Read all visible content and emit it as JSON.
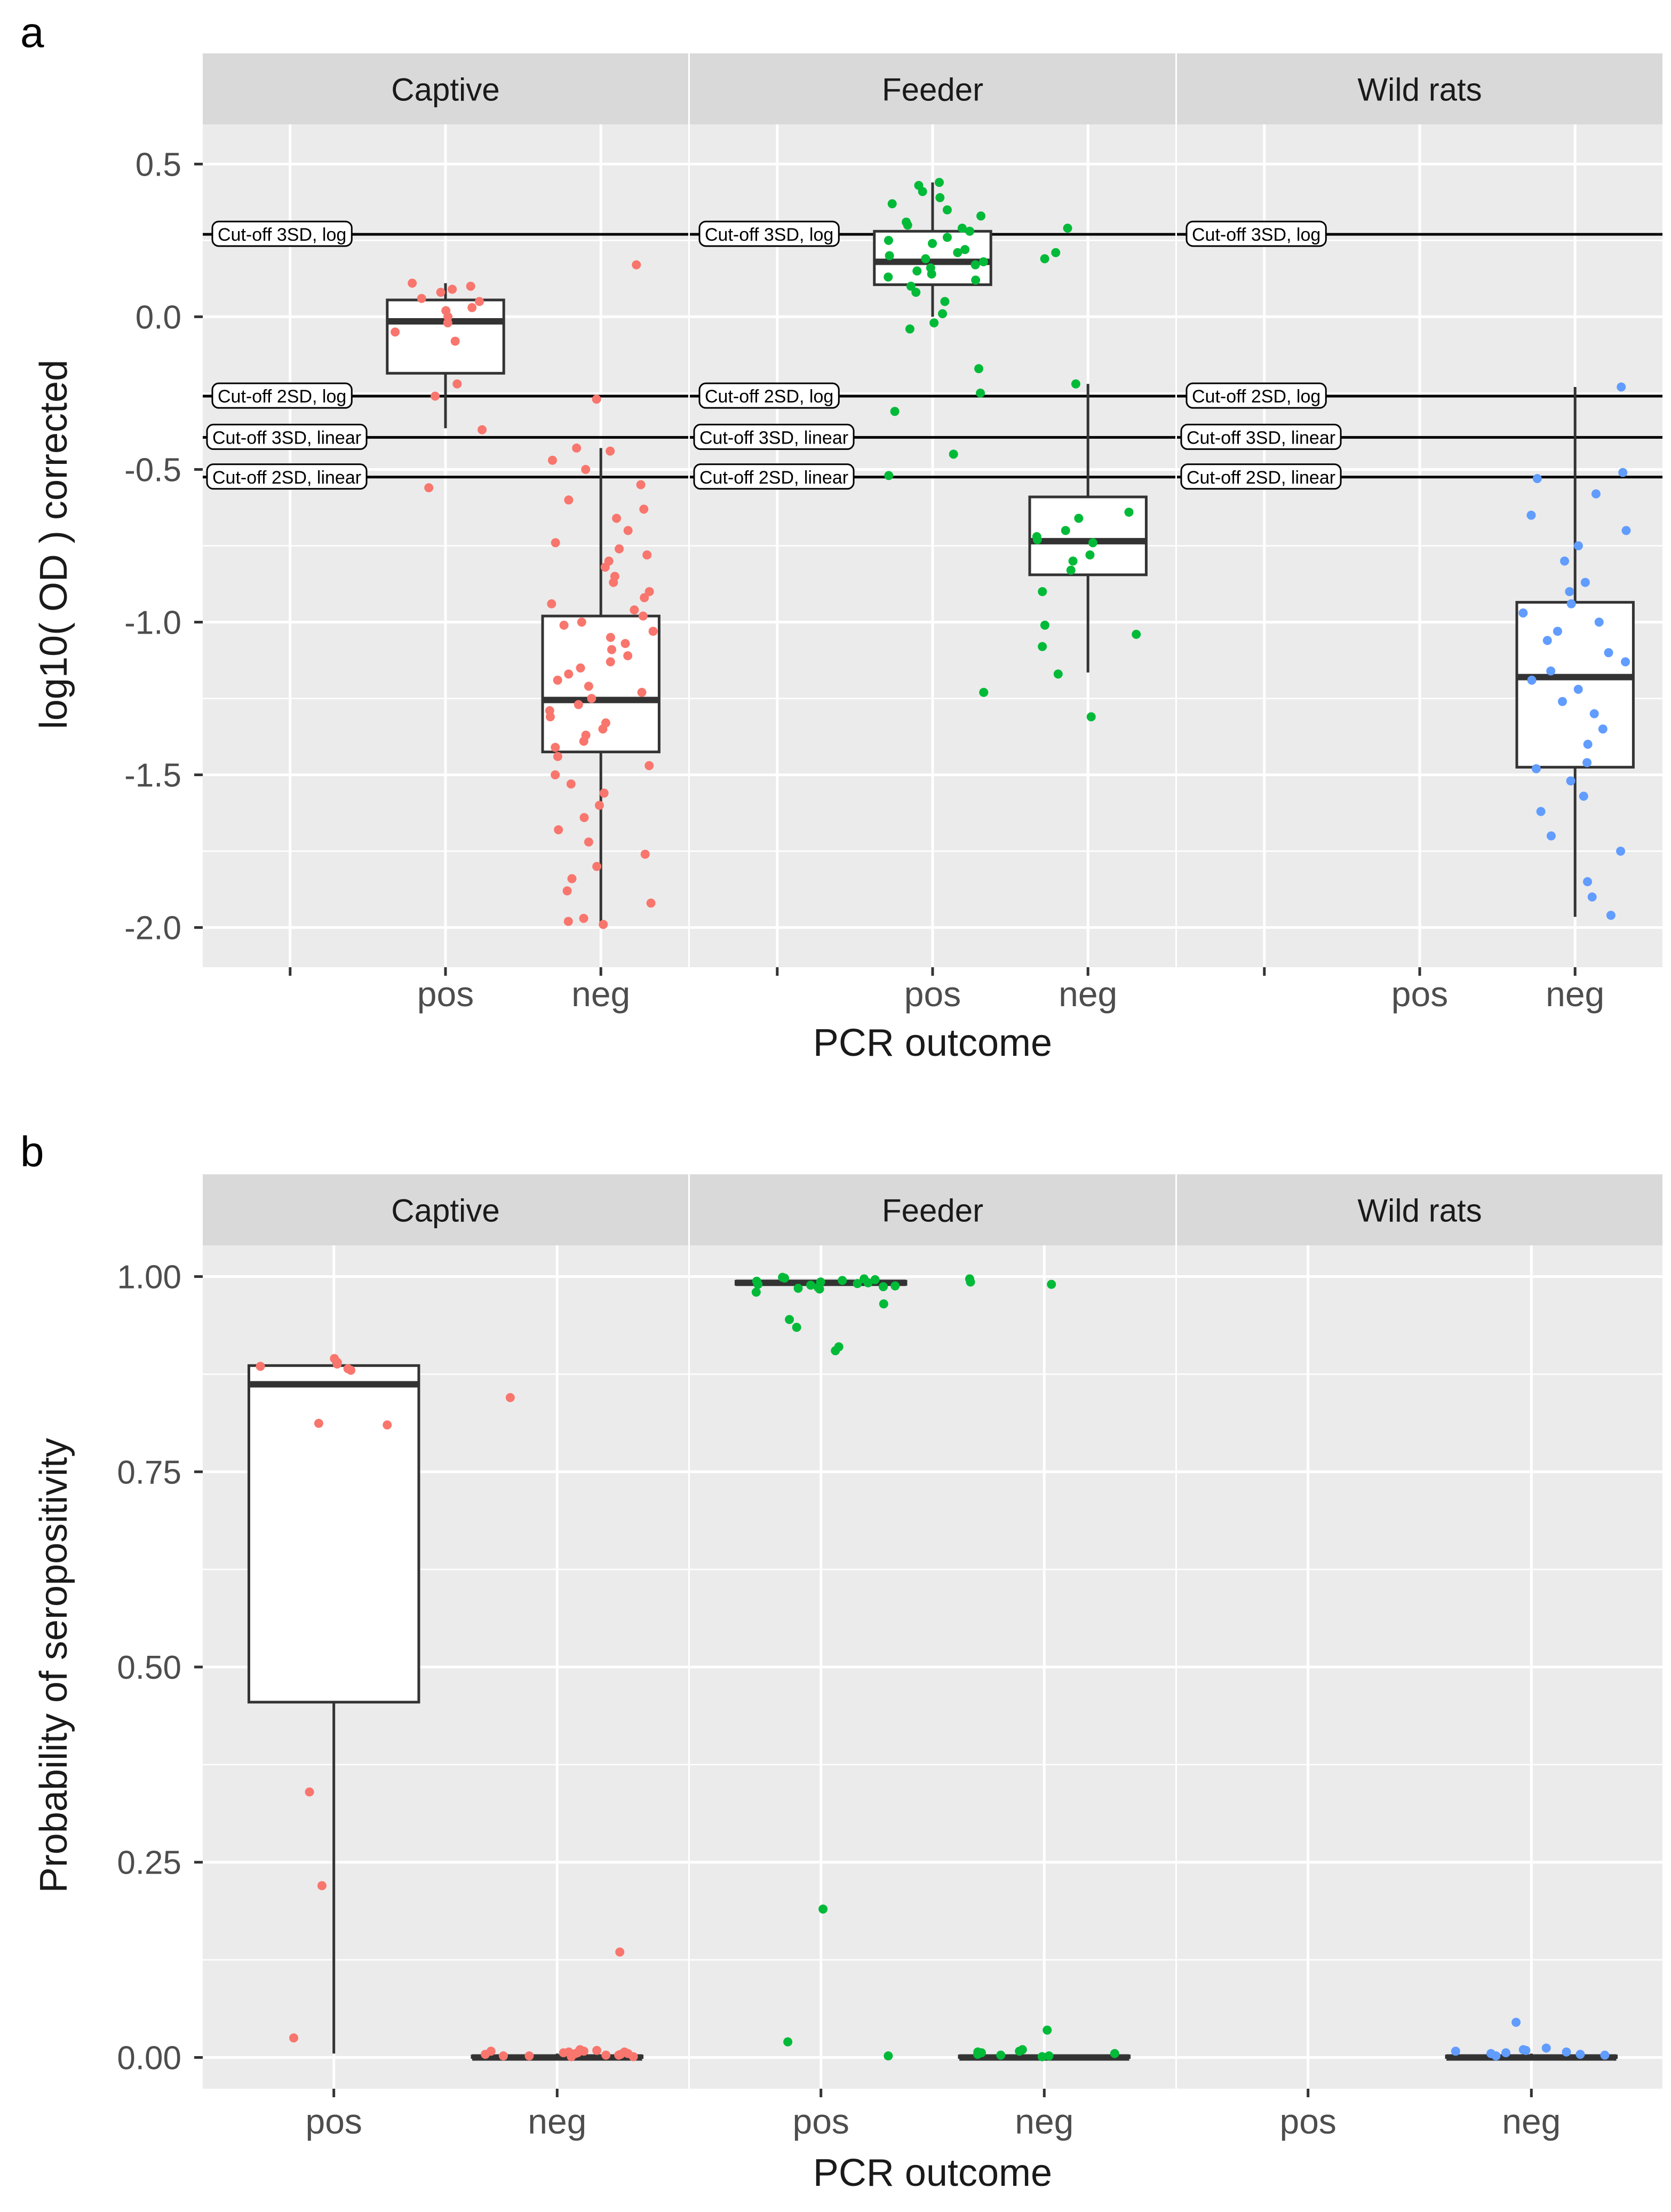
{
  "colors": {
    "panel_bg": "#ebebeb",
    "strip_bg": "#d9d9d9",
    "grid": "#ffffff",
    "axis_text": "#4d4d4d",
    "text": "#1a1a1a",
    "series": {
      "Captive": "#f8766d",
      "Feeder": "#00ba38",
      "Wild rats": "#619cff"
    }
  },
  "chart_data": [
    {
      "panel_label": "a",
      "type": "boxplot",
      "facets": [
        "Captive",
        "Feeder",
        "Wild rats"
      ],
      "categories": [
        "",
        "pos",
        "neg"
      ],
      "xlabel": "PCR outcome",
      "ylabel": "log10( OD ) corrected",
      "ylim": [
        -2.13,
        0.63
      ],
      "yticks": [
        0.5,
        0.0,
        -0.5,
        -1.0,
        -1.5,
        -2.0
      ],
      "ytick_labels": [
        "0.5",
        "0.0",
        "-0.5",
        "-1.0",
        "-1.5",
        "-2.0"
      ],
      "cutoffs": [
        {
          "label": "Cut-off 3SD, log",
          "value": 0.27
        },
        {
          "label": "Cut-off 2SD, log",
          "value": -0.26
        },
        {
          "label": "Cut-off 3SD, linear",
          "value": -0.395
        },
        {
          "label": "Cut-off 2SD, linear",
          "value": -0.525
        }
      ],
      "series": [
        {
          "facet": "Captive",
          "category": "pos",
          "box": {
            "q1": -0.185,
            "median": -0.015,
            "q3": 0.055,
            "whisker_low": -0.365,
            "whisker_high": 0.11
          },
          "points": [
            0.11,
            0.1,
            0.09,
            0.08,
            0.06,
            0.05,
            0.03,
            0.02,
            0.0,
            -0.02,
            -0.05,
            -0.08,
            -0.22,
            -0.26,
            -0.37,
            -0.56
          ]
        },
        {
          "facet": "Captive",
          "category": "neg",
          "box": {
            "q1": -1.425,
            "median": -1.255,
            "q3": -0.98,
            "whisker_low": -1.985,
            "whisker_high": -0.43
          },
          "points": [
            0.17,
            -0.27,
            -0.43,
            -0.44,
            -0.47,
            -0.5,
            -0.55,
            -0.6,
            -0.63,
            -0.66,
            -0.7,
            -0.74,
            -0.76,
            -0.78,
            -0.8,
            -0.82,
            -0.85,
            -0.87,
            -0.9,
            -0.92,
            -0.94,
            -0.96,
            -0.98,
            -1.0,
            -1.01,
            -1.03,
            -1.05,
            -1.07,
            -1.09,
            -1.11,
            -1.13,
            -1.15,
            -1.17,
            -1.19,
            -1.21,
            -1.23,
            -1.25,
            -1.27,
            -1.29,
            -1.31,
            -1.33,
            -1.35,
            -1.37,
            -1.39,
            -1.41,
            -1.44,
            -1.47,
            -1.5,
            -1.53,
            -1.56,
            -1.6,
            -1.64,
            -1.68,
            -1.72,
            -1.76,
            -1.8,
            -1.84,
            -1.88,
            -1.92,
            -1.97,
            -1.98,
            -1.99
          ]
        },
        {
          "facet": "Feeder",
          "category": "pos",
          "box": {
            "q1": 0.105,
            "median": 0.18,
            "q3": 0.28,
            "whisker_low": 0.0,
            "whisker_high": 0.44
          },
          "points": [
            0.44,
            0.43,
            0.41,
            0.39,
            0.37,
            0.35,
            0.33,
            0.31,
            0.3,
            0.29,
            0.28,
            0.26,
            0.25,
            0.24,
            0.22,
            0.21,
            0.2,
            0.19,
            0.18,
            0.17,
            0.16,
            0.15,
            0.14,
            0.13,
            0.12,
            0.1,
            0.08,
            0.05,
            0.01,
            -0.02,
            -0.04,
            -0.17,
            -0.25,
            -0.31,
            -0.45,
            -0.52,
            -1.23
          ]
        },
        {
          "facet": "Feeder",
          "category": "neg",
          "box": {
            "q1": -0.845,
            "median": -0.735,
            "q3": -0.59,
            "whisker_low": -1.165,
            "whisker_high": -0.22
          },
          "points": [
            0.29,
            0.21,
            0.19,
            -0.22,
            -0.64,
            -0.66,
            -0.7,
            -0.72,
            -0.73,
            -0.74,
            -0.78,
            -0.8,
            -0.83,
            -0.9,
            -1.01,
            -1.04,
            -1.08,
            -1.17,
            -1.31
          ]
        },
        {
          "facet": "Wild rats",
          "category": "neg",
          "box": {
            "q1": -1.475,
            "median": -1.18,
            "q3": -0.935,
            "whisker_low": -1.965,
            "whisker_high": -0.23
          },
          "points": [
            -0.23,
            -0.51,
            -0.53,
            -0.58,
            -0.65,
            -0.7,
            -0.75,
            -0.8,
            -0.87,
            -0.9,
            -0.94,
            -0.97,
            -1.0,
            -1.03,
            -1.06,
            -1.1,
            -1.13,
            -1.16,
            -1.19,
            -1.22,
            -1.26,
            -1.3,
            -1.35,
            -1.4,
            -1.46,
            -1.48,
            -1.52,
            -1.57,
            -1.62,
            -1.7,
            -1.75,
            -1.85,
            -1.9,
            -1.96
          ]
        }
      ]
    },
    {
      "panel_label": "b",
      "type": "boxplot",
      "facets": [
        "Captive",
        "Feeder",
        "Wild rats"
      ],
      "categories": [
        "pos",
        "neg"
      ],
      "xlabel": "PCR outcome",
      "ylabel": "Probability of seropositivity",
      "ylim": [
        -0.04,
        1.04
      ],
      "yticks": [
        1.0,
        0.75,
        0.5,
        0.25,
        0.0
      ],
      "ytick_labels": [
        "1.00",
        "0.75",
        "0.50",
        "0.25",
        "0.00"
      ],
      "series": [
        {
          "facet": "Captive",
          "category": "pos",
          "box": {
            "q1": 0.455,
            "median": 0.862,
            "q3": 0.886,
            "whisker_low": 0.005,
            "whisker_high": 0.895
          },
          "points": [
            0.895,
            0.89,
            0.888,
            0.885,
            0.882,
            0.88,
            0.812,
            0.81,
            0.34,
            0.22,
            0.025
          ]
        },
        {
          "facet": "Captive",
          "category": "neg",
          "box": {
            "q1": 0.0,
            "median": 0.0,
            "q3": 0.002,
            "whisker_low": 0.0,
            "whisker_high": 0.005
          },
          "points": [
            0.845,
            0.135,
            0.01,
            0.009,
            0.008,
            0.008,
            0.007,
            0.007,
            0.006,
            0.006,
            0.005,
            0.005,
            0.004,
            0.004,
            0.003,
            0.003,
            0.002,
            0.002,
            0.001,
            0.001
          ]
        },
        {
          "facet": "Feeder",
          "category": "pos",
          "box": {
            "q1": 0.99,
            "median": 0.992,
            "q3": 0.994,
            "whisker_low": 0.985,
            "whisker_high": 0.998
          },
          "points": [
            0.999,
            0.998,
            0.997,
            0.996,
            0.995,
            0.994,
            0.993,
            0.992,
            0.991,
            0.99,
            0.989,
            0.988,
            0.987,
            0.986,
            0.985,
            0.984,
            0.98,
            0.965,
            0.945,
            0.935,
            0.91,
            0.905,
            0.19,
            0.02,
            0.002
          ]
        },
        {
          "facet": "Feeder",
          "category": "neg",
          "box": {
            "q1": 0.0,
            "median": 0.0,
            "q3": 0.002,
            "whisker_low": 0.0,
            "whisker_high": 0.005
          },
          "points": [
            0.997,
            0.993,
            0.99,
            0.035,
            0.01,
            0.008,
            0.007,
            0.006,
            0.005,
            0.004,
            0.003,
            0.002,
            0.001
          ]
        },
        {
          "facet": "Wild rats",
          "category": "neg",
          "box": {
            "q1": 0.0,
            "median": 0.0,
            "q3": 0.002,
            "whisker_low": 0.0,
            "whisker_high": 0.005
          },
          "points": [
            0.045,
            0.012,
            0.01,
            0.009,
            0.008,
            0.007,
            0.006,
            0.005,
            0.004,
            0.003,
            0.002
          ]
        }
      ]
    }
  ]
}
